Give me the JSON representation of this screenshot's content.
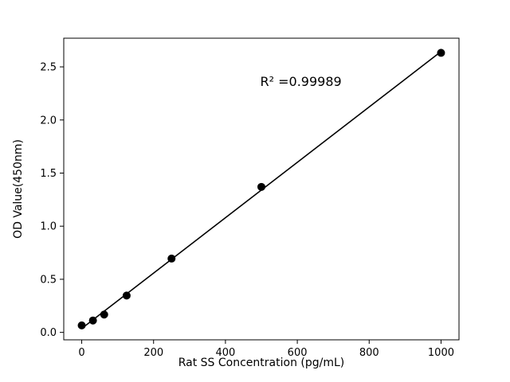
{
  "figure": {
    "background": "#ffffff",
    "annotation": {
      "text": "R² =0.99989",
      "fx": 0.6,
      "fy": 0.855
    }
  },
  "chart_data": {
    "type": "scatter",
    "title": "",
    "xlabel": "Rat SS Concentration (pg/mL)",
    "ylabel": "OD Value(450nm)",
    "x": [
      0,
      31.25,
      62.5,
      125,
      250,
      500,
      1000
    ],
    "y": [
      0.066,
      0.112,
      0.168,
      0.347,
      0.695,
      1.37,
      2.632
    ],
    "fit_line": true,
    "annotation_text": "R² =0.99989",
    "xlim": [
      -50,
      1050
    ],
    "ylim": [
      -0.07,
      2.77
    ],
    "xticks": [
      0,
      200,
      400,
      600,
      800,
      1000
    ],
    "xtick_labels": [
      "0",
      "200",
      "400",
      "600",
      "800",
      "1000"
    ],
    "yticks": [
      0.0,
      0.5,
      1.0,
      1.5,
      2.0,
      2.5
    ],
    "ytick_labels": [
      "0.0",
      "0.5",
      "1.0",
      "1.5",
      "2.0",
      "2.5"
    ],
    "marker_color": "#000000",
    "line_color": "#000000",
    "grid": false,
    "legend_position": "none"
  }
}
